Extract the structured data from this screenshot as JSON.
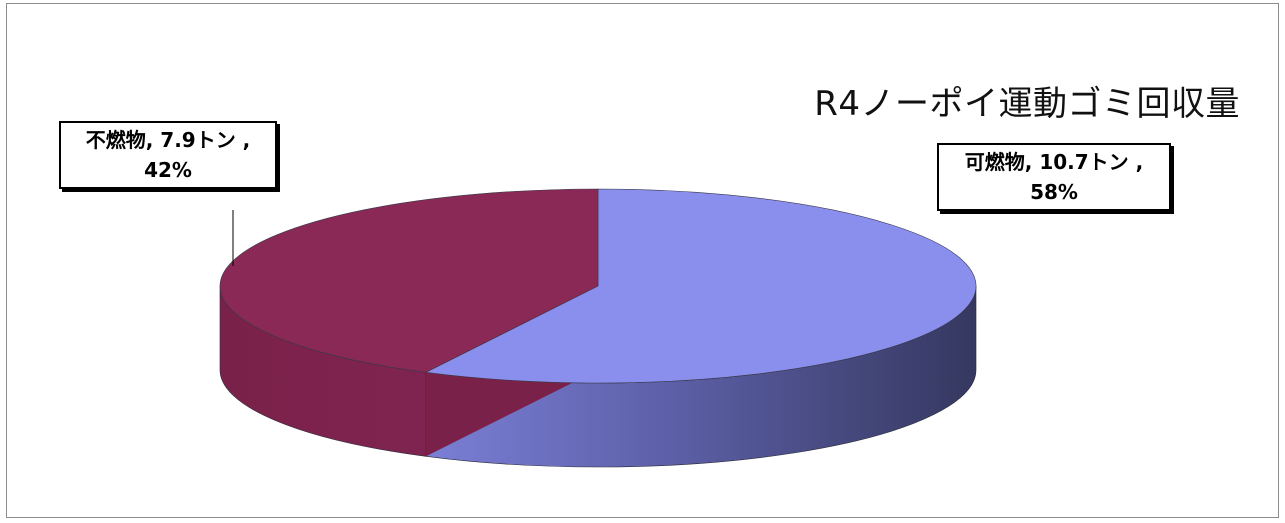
{
  "chart_data": {
    "type": "pie",
    "title": "R4ノーポイ運動ゴミ回収量",
    "slices": [
      {
        "category": "可燃物",
        "value": 10.7,
        "unit": "トン",
        "percent": "58%",
        "color": "#8a8eec"
      },
      {
        "category": "不燃物",
        "value": 7.9,
        "unit": "トン",
        "percent": "42%",
        "color": "#8a2856"
      }
    ],
    "labels": [
      {
        "line1": "可燃物, 10.7トン ,",
        "line2": "58%"
      },
      {
        "line1": "不燃物, 7.9トン ,",
        "line2": "42%"
      }
    ],
    "legend": "none",
    "style": "3d-pie"
  }
}
